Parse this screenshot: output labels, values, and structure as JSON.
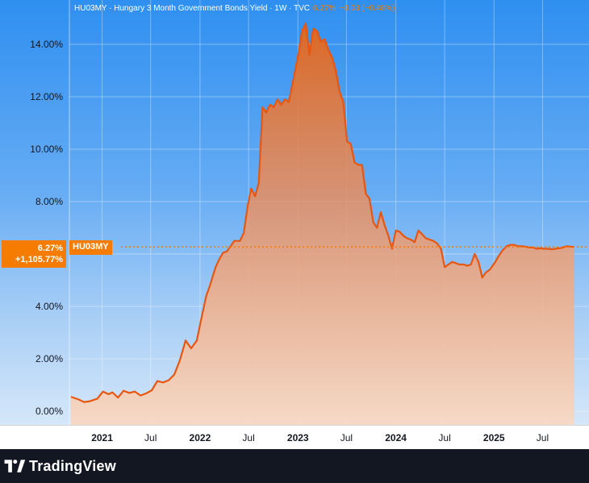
{
  "header": {
    "title": "HU03MY · Hungary 3 Month Government Bonds Yield · 1W · TVC",
    "last": "6.27%",
    "change": "−0.03 (−0.48%)"
  },
  "badges": {
    "price": "6.27%",
    "percent_change": "+1,105.77%",
    "symbol": "HU03MY"
  },
  "brand": {
    "name": "TradingView"
  },
  "colors": {
    "line": "#e8560f",
    "accent": "#f57c00",
    "background_top": "#2f8ff0",
    "footer": "#131722"
  },
  "chart_data": {
    "type": "area",
    "title": "HU03MY · Hungary 3 Month Government Bonds Yield · 1W · TVC",
    "xlabel": "",
    "ylabel": "",
    "y_unit": "%",
    "ylim": [
      -0.5,
      15.5
    ],
    "xlim": [
      "2020-09-01",
      "2025-11-15"
    ],
    "y_ticks": [
      "0.00%",
      "2.00%",
      "4.00%",
      "6.00%",
      "8.00%",
      "10.00%",
      "12.00%",
      "14.00%"
    ],
    "y_tick_values": [
      0,
      2,
      4,
      6,
      8,
      10,
      12,
      14
    ],
    "x_ticks": [
      {
        "label": "2021",
        "date": "2021-01-01",
        "bold": true
      },
      {
        "label": "Jul",
        "date": "2021-07-01",
        "bold": false
      },
      {
        "label": "2022",
        "date": "2022-01-01",
        "bold": true
      },
      {
        "label": "Jul",
        "date": "2022-07-01",
        "bold": false
      },
      {
        "label": "2023",
        "date": "2023-01-01",
        "bold": true
      },
      {
        "label": "Jul",
        "date": "2023-07-01",
        "bold": false
      },
      {
        "label": "2024",
        "date": "2024-01-01",
        "bold": true
      },
      {
        "label": "Jul",
        "date": "2024-07-01",
        "bold": false
      },
      {
        "label": "2025",
        "date": "2025-01-01",
        "bold": true
      },
      {
        "label": "Jul",
        "date": "2025-07-01",
        "bold": false
      }
    ],
    "last_value": 6.27,
    "grid": true,
    "series": [
      {
        "x": [
          "2020-09-07",
          "2020-10-05",
          "2020-10-26",
          "2020-11-16",
          "2020-12-14",
          "2021-01-04",
          "2021-01-25",
          "2021-02-08",
          "2021-03-01",
          "2021-03-22",
          "2021-04-12",
          "2021-05-03",
          "2021-05-24",
          "2021-06-14",
          "2021-07-05",
          "2021-07-26",
          "2021-08-16",
          "2021-09-06",
          "2021-09-27",
          "2021-10-18",
          "2021-11-08",
          "2021-11-29",
          "2021-12-20",
          "2022-01-03",
          "2022-01-24",
          "2022-02-07",
          "2022-02-28",
          "2022-03-14",
          "2022-03-28",
          "2022-04-11",
          "2022-04-25",
          "2022-05-09",
          "2022-05-30",
          "2022-06-13",
          "2022-06-27",
          "2022-07-11",
          "2022-07-25",
          "2022-08-08",
          "2022-08-22",
          "2022-09-05",
          "2022-09-19",
          "2022-10-03",
          "2022-10-17",
          "2022-10-31",
          "2022-11-14",
          "2022-11-28",
          "2022-12-12",
          "2023-01-02",
          "2023-01-16",
          "2023-01-30",
          "2023-02-13",
          "2023-02-27",
          "2023-03-13",
          "2023-03-27",
          "2023-04-10",
          "2023-04-24",
          "2023-05-08",
          "2023-05-22",
          "2023-06-05",
          "2023-06-19",
          "2023-07-03",
          "2023-07-17",
          "2023-07-31",
          "2023-08-14",
          "2023-08-28",
          "2023-09-11",
          "2023-09-25",
          "2023-10-09",
          "2023-10-23",
          "2023-11-06",
          "2023-11-20",
          "2023-12-04",
          "2023-12-18",
          "2024-01-01",
          "2024-01-15",
          "2024-01-29",
          "2024-02-12",
          "2024-02-26",
          "2024-03-11",
          "2024-03-25",
          "2024-04-08",
          "2024-04-22",
          "2024-05-06",
          "2024-05-20",
          "2024-06-03",
          "2024-06-17",
          "2024-07-01",
          "2024-07-15",
          "2024-07-29",
          "2024-08-12",
          "2024-08-26",
          "2024-09-09",
          "2024-09-23",
          "2024-10-07",
          "2024-10-21",
          "2024-11-04",
          "2024-11-18",
          "2024-12-02",
          "2024-12-16",
          "2025-01-06",
          "2025-01-20",
          "2025-02-03",
          "2025-02-17",
          "2025-03-03",
          "2025-03-17",
          "2025-03-31",
          "2025-04-14",
          "2025-04-28",
          "2025-05-12",
          "2025-05-26",
          "2025-06-09",
          "2025-06-23",
          "2025-07-07",
          "2025-07-21",
          "2025-08-04",
          "2025-08-18",
          "2025-09-01",
          "2025-09-15",
          "2025-09-29",
          "2025-10-13",
          "2025-10-27"
        ],
        "y": [
          0.55,
          0.45,
          0.35,
          0.38,
          0.48,
          0.75,
          0.65,
          0.72,
          0.52,
          0.78,
          0.7,
          0.75,
          0.6,
          0.68,
          0.8,
          1.15,
          1.1,
          1.18,
          1.4,
          1.95,
          2.7,
          2.4,
          2.7,
          3.4,
          4.4,
          4.8,
          5.5,
          5.8,
          6.05,
          6.1,
          6.3,
          6.5,
          6.5,
          6.8,
          7.8,
          8.5,
          8.2,
          8.7,
          11.6,
          11.4,
          11.7,
          11.6,
          11.9,
          11.7,
          11.9,
          11.8,
          12.5,
          13.6,
          14.5,
          14.8,
          13.6,
          14.6,
          14.5,
          14.1,
          14.2,
          13.8,
          13.5,
          13.0,
          12.2,
          11.8,
          10.3,
          10.2,
          9.5,
          9.4,
          9.4,
          8.3,
          8.1,
          7.2,
          7.0,
          7.6,
          7.1,
          6.7,
          6.2,
          6.9,
          6.85,
          6.7,
          6.6,
          6.55,
          6.45,
          6.9,
          6.75,
          6.6,
          6.55,
          6.5,
          6.4,
          6.2,
          5.5,
          5.6,
          5.7,
          5.65,
          5.6,
          5.6,
          5.55,
          5.6,
          6.0,
          5.7,
          5.1,
          5.3,
          5.4,
          5.7,
          5.95,
          6.15,
          6.3,
          6.35,
          6.35,
          6.3,
          6.3,
          6.28,
          6.25,
          6.25,
          6.2,
          6.22,
          6.2,
          6.2,
          6.18,
          6.2,
          6.22,
          6.25,
          6.3,
          6.28,
          6.27
        ]
      }
    ]
  }
}
